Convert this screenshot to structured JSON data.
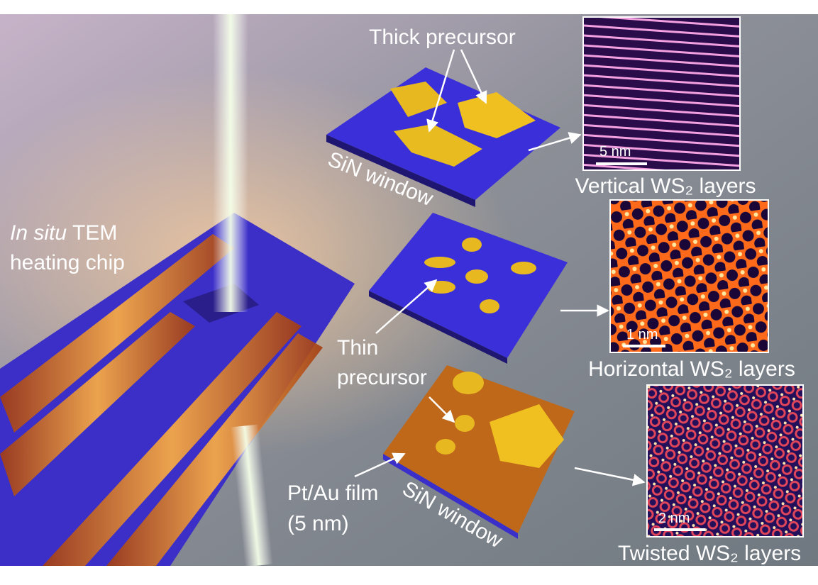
{
  "chip_label": {
    "italic": "In situ",
    "rest": "TEM",
    "line2": "heating chip"
  },
  "thick_precursor": "Thick precursor",
  "thin_precursor": [
    "Thin",
    "precursor"
  ],
  "film_label": [
    "Pt/Au film",
    "(5 nm)"
  ],
  "window_labels": [
    "SiN window",
    "SiN window"
  ],
  "panels": [
    {
      "scale": "5 nm",
      "caption": "Vertical WS₂ layers"
    },
    {
      "scale": "1 nm",
      "caption": "Horizontal WS₂ layers"
    },
    {
      "scale": "2 nm",
      "caption": "Twisted WS₂ layers"
    }
  ]
}
